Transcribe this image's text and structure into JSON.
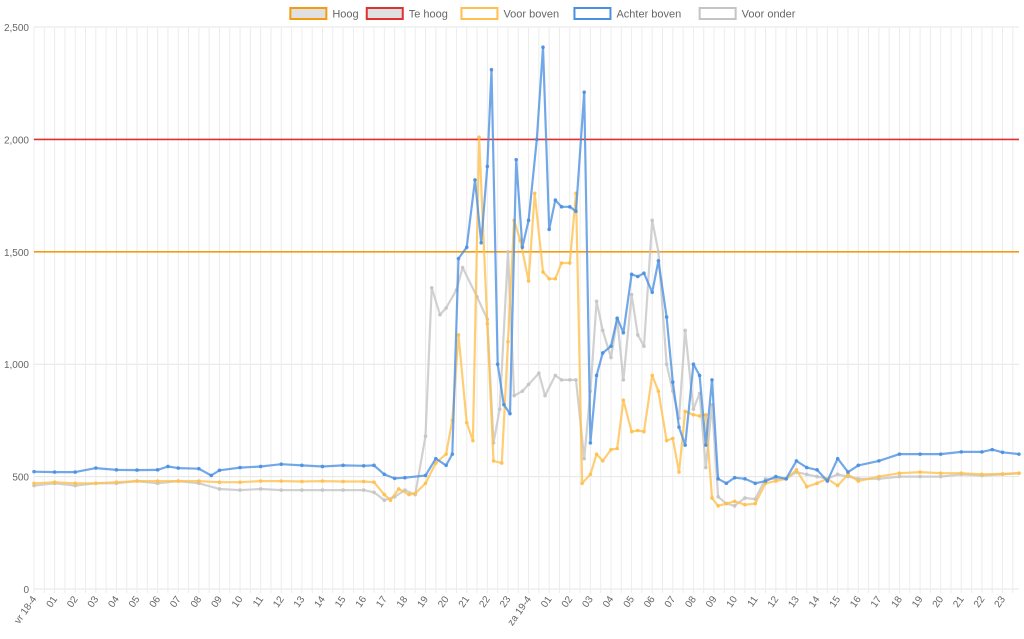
{
  "chart_data": {
    "type": "line",
    "title": "",
    "xlabel": "",
    "ylabel": "",
    "ylim": [
      0,
      2500
    ],
    "yticks": [
      0,
      500,
      1000,
      1500,
      2000,
      2500
    ],
    "ytick_labels": [
      "0",
      "500",
      "1,000",
      "1,500",
      "2,000",
      "2,500"
    ],
    "xtick_labels": [
      "vr 18-4",
      "01",
      "02",
      "03",
      "04",
      "05",
      "06",
      "07",
      "08",
      "09",
      "10",
      "11",
      "12",
      "13",
      "14",
      "15",
      "16",
      "17",
      "18",
      "19",
      "20",
      "21",
      "22",
      "23",
      "za 19-4",
      "01",
      "02",
      "03",
      "04",
      "05",
      "06",
      "07",
      "08",
      "09",
      "10",
      "11",
      "12",
      "13",
      "14",
      "15",
      "16",
      "17",
      "18",
      "19",
      "20",
      "21",
      "22",
      "23"
    ],
    "x_hours_range": [
      0,
      47.8
    ],
    "grid": true,
    "legend_position": "top",
    "legend": [
      {
        "name": "Hoog",
        "color": "#f39c12",
        "fill": "#e0e0e0"
      },
      {
        "name": "Te hoog",
        "color": "#e03131",
        "fill": "#e0e0e0"
      },
      {
        "name": "Voor boven",
        "color": "#ffc04d",
        "fill": "#ffffff"
      },
      {
        "name": "Achter boven",
        "color": "#4a90e2",
        "fill": "#ffffff"
      },
      {
        "name": "Voor onder",
        "color": "#c4c4c4",
        "fill": "#ffffff"
      }
    ],
    "thresholds": [
      {
        "name": "Hoog",
        "value": 1500,
        "color": "#f39c12"
      },
      {
        "name": "Te hoog",
        "value": 2000,
        "color": "#e03131"
      }
    ],
    "series": [
      {
        "name": "Achter boven",
        "color": "#4a90e2",
        "points": [
          [
            0,
            522
          ],
          [
            1,
            520
          ],
          [
            2,
            520
          ],
          [
            3,
            538
          ],
          [
            4,
            530
          ],
          [
            5,
            529
          ],
          [
            6,
            530
          ],
          [
            6.5,
            545
          ],
          [
            7,
            538
          ],
          [
            8,
            535
          ],
          [
            8.6,
            505
          ],
          [
            9,
            528
          ],
          [
            10,
            540
          ],
          [
            11,
            545
          ],
          [
            12,
            555
          ],
          [
            13,
            550
          ],
          [
            14,
            545
          ],
          [
            15,
            550
          ],
          [
            16,
            548
          ],
          [
            16.5,
            550
          ],
          [
            17,
            510
          ],
          [
            17.5,
            492
          ],
          [
            18,
            495
          ],
          [
            19,
            505
          ],
          [
            19.5,
            580
          ],
          [
            20,
            550
          ],
          [
            20.3,
            600
          ],
          [
            20.6,
            1470
          ],
          [
            21,
            1520
          ],
          [
            21.4,
            1820
          ],
          [
            21.7,
            1540
          ],
          [
            22,
            1880
          ],
          [
            22.2,
            2310
          ],
          [
            22.5,
            1000
          ],
          [
            22.8,
            820
          ],
          [
            23.1,
            780
          ],
          [
            23.4,
            1910
          ],
          [
            23.7,
            1520
          ],
          [
            24,
            1640
          ],
          [
            24.4,
            2000
          ],
          [
            24.7,
            2410
          ],
          [
            25,
            1600
          ],
          [
            25.3,
            1730
          ],
          [
            25.6,
            1700
          ],
          [
            26,
            1700
          ],
          [
            26.3,
            1680
          ],
          [
            26.7,
            2210
          ],
          [
            27,
            650
          ],
          [
            27.3,
            950
          ],
          [
            27.6,
            1050
          ],
          [
            28,
            1080
          ],
          [
            28.3,
            1205
          ],
          [
            28.6,
            1140
          ],
          [
            29,
            1400
          ],
          [
            29.3,
            1390
          ],
          [
            29.6,
            1405
          ],
          [
            30,
            1320
          ],
          [
            30.3,
            1460
          ],
          [
            30.7,
            1210
          ],
          [
            31,
            920
          ],
          [
            31.3,
            720
          ],
          [
            31.6,
            640
          ],
          [
            32,
            1000
          ],
          [
            32.3,
            950
          ],
          [
            32.6,
            640
          ],
          [
            32.9,
            930
          ],
          [
            33.2,
            490
          ],
          [
            33.6,
            470
          ],
          [
            34,
            495
          ],
          [
            34.5,
            490
          ],
          [
            35,
            470
          ],
          [
            35.5,
            480
          ],
          [
            36,
            500
          ],
          [
            36.5,
            490
          ],
          [
            37,
            570
          ],
          [
            37.5,
            540
          ],
          [
            38,
            530
          ],
          [
            38.5,
            480
          ],
          [
            39,
            580
          ],
          [
            39.5,
            520
          ],
          [
            40,
            550
          ],
          [
            41,
            570
          ],
          [
            42,
            600
          ],
          [
            43,
            600
          ],
          [
            44,
            600
          ],
          [
            45,
            610
          ],
          [
            46,
            610
          ],
          [
            46.5,
            620
          ],
          [
            47,
            608
          ],
          [
            47.8,
            600
          ]
        ]
      },
      {
        "name": "Voor boven",
        "color": "#ffc04d",
        "points": [
          [
            0,
            470
          ],
          [
            1,
            475
          ],
          [
            2,
            470
          ],
          [
            3,
            470
          ],
          [
            4,
            475
          ],
          [
            5,
            480
          ],
          [
            6,
            480
          ],
          [
            7,
            480
          ],
          [
            8,
            480
          ],
          [
            9,
            475
          ],
          [
            10,
            475
          ],
          [
            11,
            480
          ],
          [
            12,
            480
          ],
          [
            13,
            478
          ],
          [
            14,
            480
          ],
          [
            15,
            478
          ],
          [
            16,
            478
          ],
          [
            16.5,
            475
          ],
          [
            17,
            420
          ],
          [
            17.3,
            395
          ],
          [
            17.7,
            445
          ],
          [
            18.2,
            420
          ],
          [
            18.5,
            425
          ],
          [
            19,
            470
          ],
          [
            19.5,
            560
          ],
          [
            20,
            600
          ],
          [
            20.3,
            750
          ],
          [
            20.6,
            1130
          ],
          [
            21,
            740
          ],
          [
            21.3,
            660
          ],
          [
            21.6,
            2010
          ],
          [
            22,
            1180
          ],
          [
            22.3,
            570
          ],
          [
            22.7,
            560
          ],
          [
            23,
            1100
          ],
          [
            23.3,
            1640
          ],
          [
            23.6,
            1550
          ],
          [
            24,
            1370
          ],
          [
            24.3,
            1760
          ],
          [
            24.7,
            1410
          ],
          [
            25,
            1380
          ],
          [
            25.3,
            1380
          ],
          [
            25.6,
            1450
          ],
          [
            26,
            1450
          ],
          [
            26.3,
            1760
          ],
          [
            26.6,
            470
          ],
          [
            27,
            510
          ],
          [
            27.3,
            600
          ],
          [
            27.6,
            570
          ],
          [
            28,
            620
          ],
          [
            28.3,
            625
          ],
          [
            28.6,
            840
          ],
          [
            29,
            700
          ],
          [
            29.3,
            705
          ],
          [
            29.6,
            700
          ],
          [
            30,
            950
          ],
          [
            30.3,
            880
          ],
          [
            30.7,
            660
          ],
          [
            31,
            670
          ],
          [
            31.3,
            520
          ],
          [
            31.6,
            790
          ],
          [
            32,
            775
          ],
          [
            32.3,
            770
          ],
          [
            32.6,
            775
          ],
          [
            32.9,
            405
          ],
          [
            33.2,
            370
          ],
          [
            33.6,
            380
          ],
          [
            34,
            390
          ],
          [
            34.5,
            375
          ],
          [
            35,
            380
          ],
          [
            35.5,
            470
          ],
          [
            36,
            480
          ],
          [
            36.5,
            490
          ],
          [
            37,
            530
          ],
          [
            37.5,
            455
          ],
          [
            38,
            470
          ],
          [
            38.5,
            490
          ],
          [
            39,
            460
          ],
          [
            39.5,
            510
          ],
          [
            40,
            480
          ],
          [
            41,
            500
          ],
          [
            42,
            515
          ],
          [
            43,
            520
          ],
          [
            44,
            515
          ],
          [
            45,
            515
          ],
          [
            46,
            510
          ],
          [
            47,
            512
          ],
          [
            47.8,
            515
          ]
        ]
      },
      {
        "name": "Voor onder",
        "color": "#c4c4c4",
        "points": [
          [
            0,
            460
          ],
          [
            1,
            470
          ],
          [
            2,
            460
          ],
          [
            3,
            470
          ],
          [
            4,
            470
          ],
          [
            5,
            480
          ],
          [
            6,
            470
          ],
          [
            7,
            480
          ],
          [
            8,
            470
          ],
          [
            9,
            445
          ],
          [
            10,
            440
          ],
          [
            11,
            445
          ],
          [
            12,
            440
          ],
          [
            13,
            440
          ],
          [
            14,
            440
          ],
          [
            15,
            440
          ],
          [
            16,
            440
          ],
          [
            16.5,
            430
          ],
          [
            17,
            395
          ],
          [
            17.5,
            410
          ],
          [
            18,
            440
          ],
          [
            18.5,
            420
          ],
          [
            19,
            680
          ],
          [
            19.3,
            1340
          ],
          [
            19.7,
            1220
          ],
          [
            20,
            1250
          ],
          [
            20.5,
            1330
          ],
          [
            20.8,
            1430
          ],
          [
            21.5,
            1300
          ],
          [
            22,
            1200
          ],
          [
            22.3,
            650
          ],
          [
            22.6,
            800
          ],
          [
            23,
            1500
          ],
          [
            23.3,
            860
          ],
          [
            23.7,
            880
          ],
          [
            24,
            910
          ],
          [
            24.5,
            960
          ],
          [
            24.8,
            860
          ],
          [
            25.3,
            950
          ],
          [
            25.6,
            930
          ],
          [
            26,
            930
          ],
          [
            26.3,
            930
          ],
          [
            26.7,
            580
          ],
          [
            27,
            880
          ],
          [
            27.3,
            1280
          ],
          [
            27.6,
            1150
          ],
          [
            28,
            1030
          ],
          [
            28.3,
            1200
          ],
          [
            28.6,
            930
          ],
          [
            29,
            1310
          ],
          [
            29.3,
            1130
          ],
          [
            29.6,
            1080
          ],
          [
            30,
            1640
          ],
          [
            30.3,
            1500
          ],
          [
            30.7,
            1000
          ],
          [
            31,
            880
          ],
          [
            31.3,
            760
          ],
          [
            31.6,
            1150
          ],
          [
            32,
            800
          ],
          [
            32.3,
            870
          ],
          [
            32.6,
            540
          ],
          [
            32.9,
            820
          ],
          [
            33.2,
            410
          ],
          [
            33.6,
            380
          ],
          [
            34,
            370
          ],
          [
            34.5,
            405
          ],
          [
            35,
            400
          ],
          [
            35.5,
            490
          ],
          [
            36,
            490
          ],
          [
            36.5,
            490
          ],
          [
            37,
            520
          ],
          [
            37.5,
            510
          ],
          [
            38,
            500
          ],
          [
            38.5,
            490
          ],
          [
            39,
            510
          ],
          [
            39.5,
            500
          ],
          [
            40,
            490
          ],
          [
            41,
            490
          ],
          [
            42,
            500
          ],
          [
            43,
            500
          ],
          [
            44,
            500
          ],
          [
            45,
            510
          ],
          [
            46,
            505
          ],
          [
            47,
            510
          ],
          [
            47.8,
            515
          ]
        ]
      }
    ]
  }
}
